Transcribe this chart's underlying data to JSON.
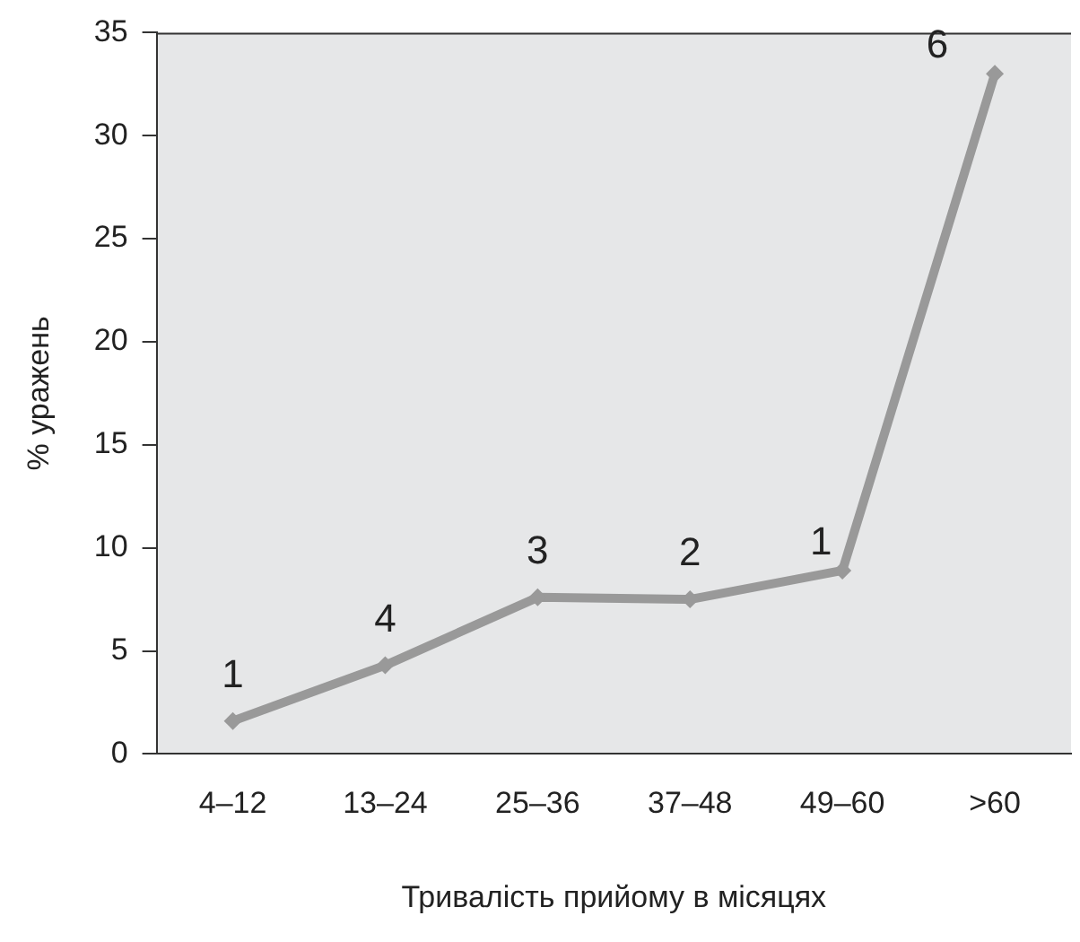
{
  "chart_data": {
    "type": "line",
    "xlabel": "Тривалість прийому в місяцях",
    "ylabel": "% уражень",
    "categories": [
      "4–12",
      "13–24",
      "25–36",
      "37–48",
      "49–60",
      ">60"
    ],
    "values": [
      1.6,
      4.3,
      7.6,
      7.5,
      8.9,
      33
    ],
    "color": "#999999",
    "marker": "diamond",
    "grid": false,
    "legend": false,
    "ylim": [
      0,
      35
    ],
    "yticks": [
      0,
      5,
      10,
      15,
      20,
      25,
      30,
      35
    ],
    "annotations": [
      {
        "text": "1",
        "x": "4–12",
        "y": 1.6
      },
      {
        "text": "4",
        "x": "13–24",
        "y": 4.3
      },
      {
        "text": "3",
        "x": "25–36",
        "y": 7.6
      },
      {
        "text": "2",
        "x": "37–48",
        "y": 7.5
      },
      {
        "text": "1",
        "x": "49–60",
        "y": 8.9
      },
      {
        "text": "6",
        "x": ">60",
        "y": 33
      }
    ]
  }
}
